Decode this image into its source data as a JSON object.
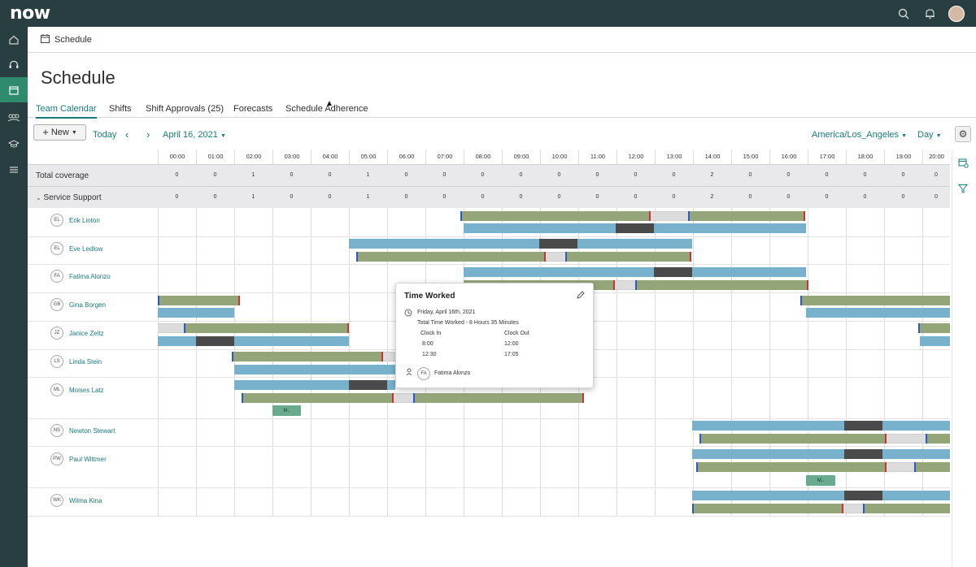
{
  "header": {
    "logo": "now",
    "icons": [
      "search-icon",
      "bell-icon",
      "avatar"
    ]
  },
  "nav": {
    "icons": [
      "home-icon",
      "headset-icon",
      "calendar-icon",
      "team-icon",
      "graduation-icon",
      "list-icon"
    ]
  },
  "breadcrumb": {
    "label": "Schedule"
  },
  "page": {
    "title": "Schedule"
  },
  "tabs": [
    {
      "label": "Team Calendar",
      "active": true
    },
    {
      "label": "Shifts"
    },
    {
      "label": "Shift Approvals (25)"
    },
    {
      "label": "Forecasts"
    },
    {
      "label": "Schedule Adherence"
    }
  ],
  "toolbar": {
    "new_label": "New",
    "today_label": "Today",
    "date_label": "April 16, 2021",
    "timezone_label": "America/Los_Angeles",
    "view_label": "Day"
  },
  "hours": [
    "00:00",
    "01:00",
    "02:00",
    "03:00",
    "04:00",
    "05:00",
    "06:00",
    "07:00",
    "08:00",
    "09:00",
    "10:00",
    "11:00",
    "12:00",
    "13:00",
    "14:00",
    "15:00",
    "16:00",
    "17:00",
    "18:00",
    "19:00",
    "20:00"
  ],
  "coverage": {
    "total_label": "Total coverage",
    "total_values": [
      "0",
      "0",
      "1",
      "0",
      "0",
      "1",
      "0",
      "0",
      "0",
      "0",
      "0",
      "0",
      "0",
      "0",
      "2",
      "0",
      "0",
      "0",
      "0",
      "0",
      "0"
    ],
    "group_label": "Service Support",
    "group_values": [
      "0",
      "0",
      "1",
      "0",
      "0",
      "1",
      "0",
      "0",
      "0",
      "0",
      "0",
      "0",
      "0",
      "0",
      "2",
      "0",
      "0",
      "0",
      "0",
      "0",
      "0"
    ]
  },
  "people": [
    {
      "initials": "EL",
      "name": "Erik Linton"
    },
    {
      "initials": "EL",
      "name": "Eve Ledlow"
    },
    {
      "initials": "FA",
      "name": "Fatima Alonzo"
    },
    {
      "initials": "GB",
      "name": "Gina Borgen"
    },
    {
      "initials": "JZ",
      "name": "Janice Zeitz"
    },
    {
      "initials": "LS",
      "name": "Linda Stein"
    },
    {
      "initials": "ML",
      "name": "Moises Latz"
    },
    {
      "initials": "NS",
      "name": "Newton Stewart"
    },
    {
      "initials": "PW",
      "name": "Paul Wittmer"
    },
    {
      "initials": "WK",
      "name": "Wilma Kina"
    }
  ],
  "meetings": {
    "moises": "M..",
    "paul": "M.."
  },
  "popover": {
    "title": "Time Worked",
    "date": "Friday, April 16th, 2021",
    "total": "Total Time Worked - 8 Hours 35 Minutes",
    "clock_in_label": "Clock In",
    "clock_out_label": "Clock Out",
    "rows": [
      {
        "in": "8:00",
        "out": "12:00"
      },
      {
        "in": "12:30",
        "out": "17:05"
      }
    ],
    "person_initials": "FA",
    "person_name": "Fatima Alonzo"
  }
}
